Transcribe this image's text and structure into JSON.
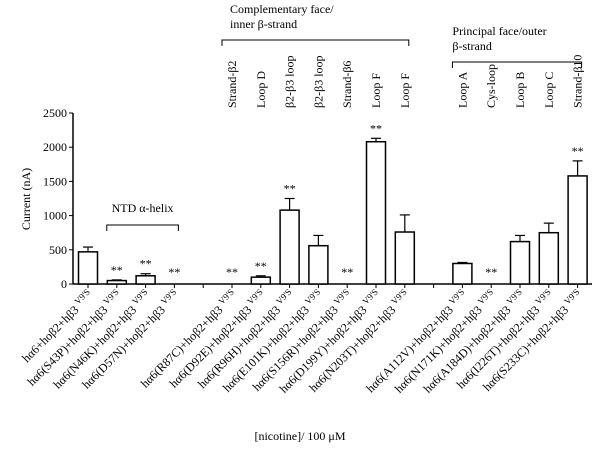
{
  "chart_data": {
    "type": "bar",
    "ylabel": "Current (nA)",
    "xlabel": "[nicotine]/ 100 μM",
    "ylim": [
      0,
      2500
    ],
    "yticks": [
      0,
      500,
      1000,
      1500,
      2000,
      2500
    ],
    "grid": false,
    "bar_color": "#ffffff",
    "edge_color": "#000000",
    "superscript": "V9'S",
    "categories": [
      "hα6+hoβ2+hβ3",
      "hα6(S43P)+hoβ2+hβ3",
      "hα6(N46K)+hoβ2+hβ3",
      "hα6(D57N)+hoβ2+hβ3",
      null,
      "hα6(R87C)+hoβ2+hβ3",
      "hα6(D92E)+hoβ2+hβ3",
      "hα6(R96H)+hoβ2+hβ3",
      "hα6(E101K)+hoβ2+hβ3",
      "hα6(S156R)+hoβ2+hβ3",
      "hα6(D199Y)+hoβ2+hβ3",
      "hα6(N203T)+hoβ2+hβ3",
      null,
      "hα6(A112V)+hoβ2+hβ3",
      "hα6(N171K)+hoβ2+hβ3",
      "hα6(A184D)+hoβ2+hβ3",
      "hα6(I226T)+hoβ2+hβ3",
      "hα6(S233C)+hoβ2+hβ3"
    ],
    "values": [
      470,
      50,
      120,
      0,
      null,
      0,
      100,
      1080,
      560,
      0,
      2080,
      760,
      null,
      300,
      0,
      620,
      750,
      1580
    ],
    "errors": [
      70,
      10,
      30,
      0,
      null,
      0,
      20,
      170,
      150,
      0,
      50,
      250,
      null,
      15,
      0,
      90,
      140,
      220
    ],
    "significance": [
      "",
      "**",
      "**",
      "**",
      "",
      "**",
      "**",
      "**",
      "",
      "**",
      "**",
      "",
      "",
      "",
      "**",
      "",
      "",
      "**"
    ],
    "region_labels": [
      "",
      "",
      "",
      "",
      "",
      "Strand-β2",
      "Loop D",
      "β2-β3 loop",
      "β2-β3 loop",
      "Strand-β6",
      "Loop F",
      "Loop F",
      "",
      "Loop A",
      "Cys-loop",
      "Loop B",
      "Loop C",
      "Strand-β10"
    ],
    "groups": [
      {
        "label_lines": [
          "NTD α-helix"
        ],
        "from": 1,
        "to": 3
      },
      {
        "label_lines": [
          "Complementary face/",
          "inner β-strand"
        ],
        "from": 5,
        "to": 11
      },
      {
        "label_lines": [
          "Principal face/outer",
          "β-strand"
        ],
        "from": 13,
        "to": 17
      }
    ]
  }
}
